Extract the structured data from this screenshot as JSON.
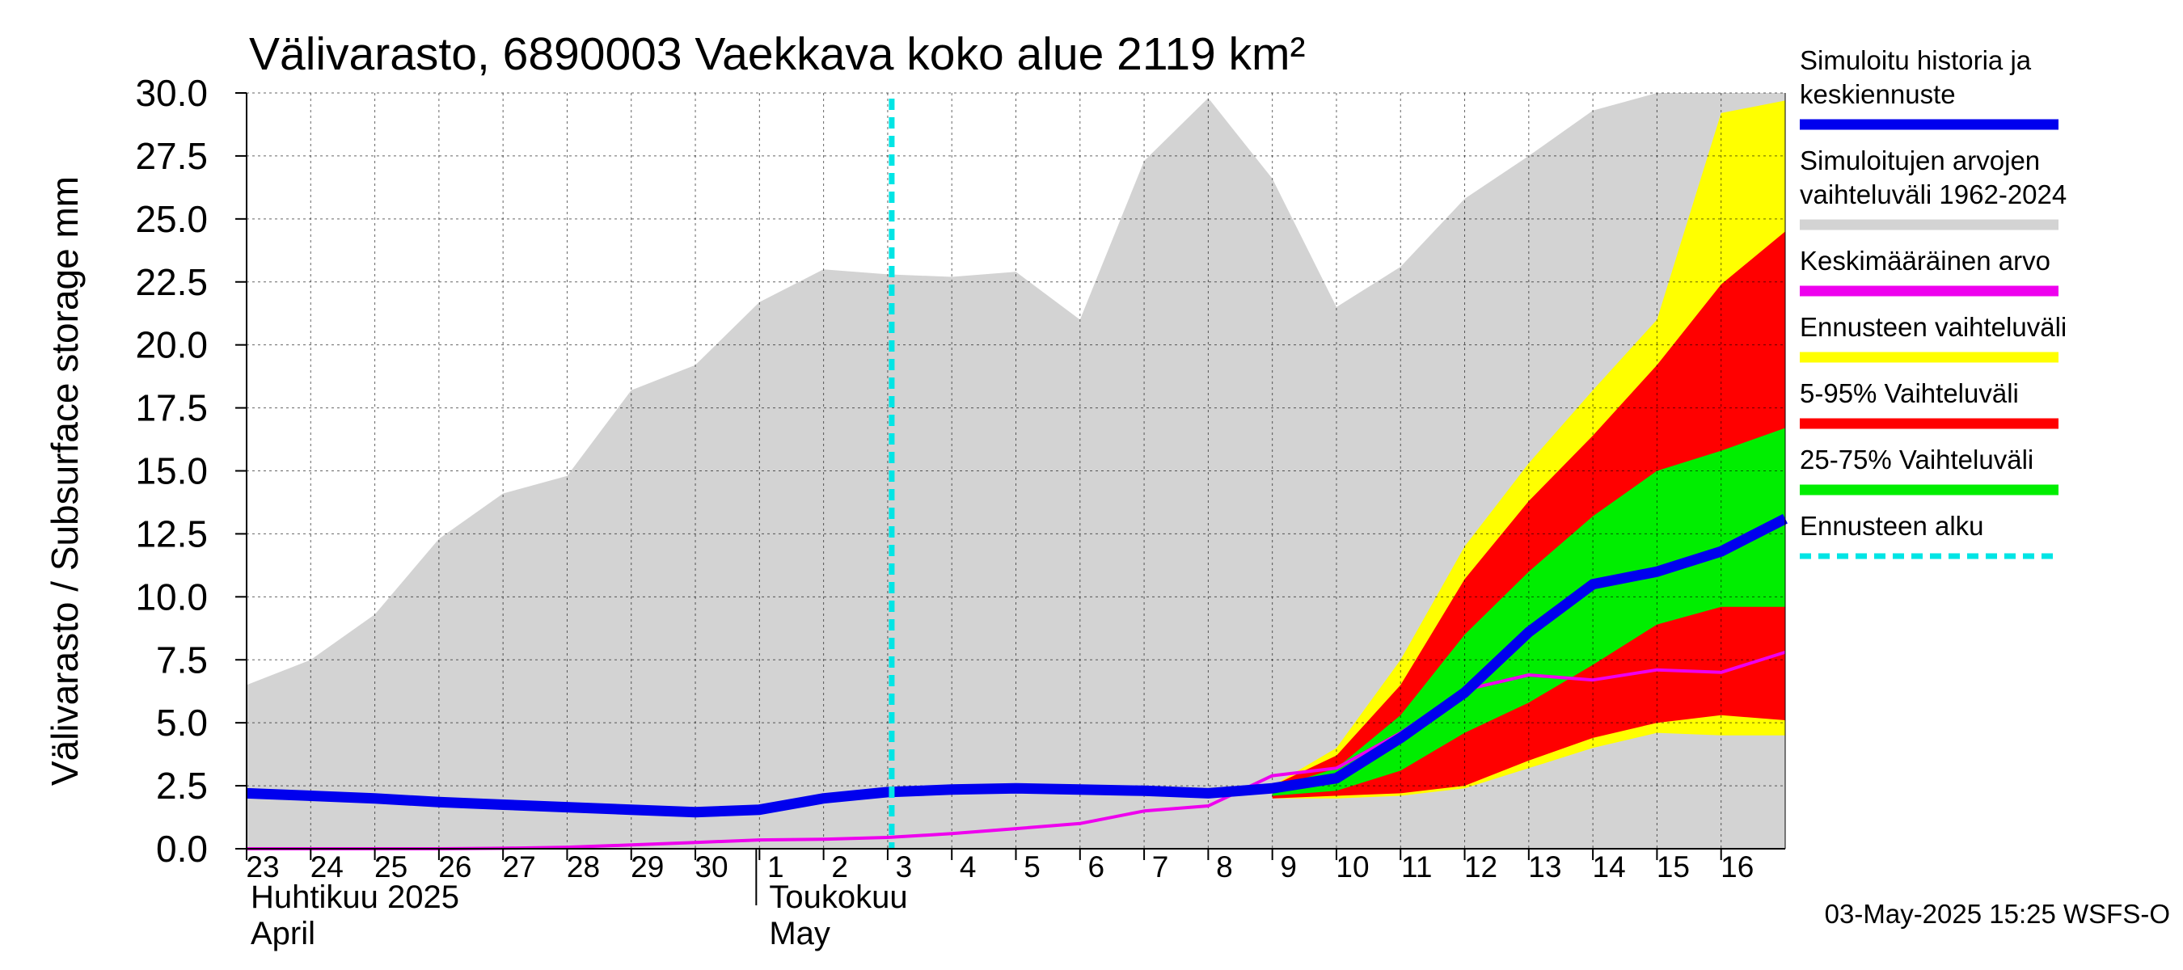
{
  "chart_data": {
    "type": "area",
    "title": "Välivarasto, 6890003 Vaekkava koko alue 2119 km²",
    "ylabel": "Välivarasto / Subsurface storage  mm",
    "ylim": [
      0,
      30
    ],
    "yticks": [
      "0.0",
      "2.5",
      "5.0",
      "7.5",
      "10.0",
      "12.5",
      "15.0",
      "17.5",
      "20.0",
      "22.5",
      "25.0",
      "27.5",
      "30.0"
    ],
    "x_start": "2025-04-23",
    "x_end": "2025-05-17",
    "xticks": [
      {
        "date": "2025-04-23",
        "label": "23"
      },
      {
        "date": "2025-04-24",
        "label": "24"
      },
      {
        "date": "2025-04-25",
        "label": "25"
      },
      {
        "date": "2025-04-26",
        "label": "26"
      },
      {
        "date": "2025-04-27",
        "label": "27"
      },
      {
        "date": "2025-04-28",
        "label": "28"
      },
      {
        "date": "2025-04-29",
        "label": "29"
      },
      {
        "date": "2025-04-30",
        "label": "30"
      },
      {
        "date": "2025-05-01",
        "label": "1"
      },
      {
        "date": "2025-05-02",
        "label": "2"
      },
      {
        "date": "2025-05-03",
        "label": "3"
      },
      {
        "date": "2025-05-04",
        "label": "4"
      },
      {
        "date": "2025-05-05",
        "label": "5"
      },
      {
        "date": "2025-05-06",
        "label": "6"
      },
      {
        "date": "2025-05-07",
        "label": "7"
      },
      {
        "date": "2025-05-08",
        "label": "8"
      },
      {
        "date": "2025-05-09",
        "label": "9"
      },
      {
        "date": "2025-05-10",
        "label": "10"
      },
      {
        "date": "2025-05-11",
        "label": "11"
      },
      {
        "date": "2025-05-12",
        "label": "12"
      },
      {
        "date": "2025-05-13",
        "label": "13"
      },
      {
        "date": "2025-05-14",
        "label": "14"
      },
      {
        "date": "2025-05-15",
        "label": "15"
      },
      {
        "date": "2025-05-16",
        "label": "16"
      }
    ],
    "month_labels": [
      {
        "date": "2025-04-23",
        "fi": "Huhtikuu  2025",
        "en": "April"
      },
      {
        "date": "2025-05-01",
        "fi": "Toukokuu",
        "en": "May"
      }
    ],
    "month_separator": "2025-05-01",
    "forecast_start": "2025-05-03",
    "grid": true,
    "legend_position": "right",
    "series": [
      {
        "name": "Simuloitujen arvojen vaihteluväli 1962-2024",
        "type": "band",
        "color": "#d3d3d3",
        "x": [
          "2025-04-23",
          "2025-04-24",
          "2025-04-25",
          "2025-04-26",
          "2025-04-27",
          "2025-04-28",
          "2025-04-29",
          "2025-04-30",
          "2025-05-01",
          "2025-05-02",
          "2025-05-03",
          "2025-05-04",
          "2025-05-05",
          "2025-05-06",
          "2025-05-07",
          "2025-05-08",
          "2025-05-09",
          "2025-05-10",
          "2025-05-11",
          "2025-05-12",
          "2025-05-13",
          "2025-05-14",
          "2025-05-15",
          "2025-05-16",
          "2025-05-17"
        ],
        "low": [
          0,
          0,
          0,
          0,
          0,
          0,
          0,
          0,
          0,
          0,
          0,
          0,
          0,
          0,
          0,
          0,
          0,
          0,
          0,
          0,
          0,
          0,
          0,
          0,
          0
        ],
        "high": [
          6.5,
          7.5,
          9.3,
          12.3,
          14.1,
          14.8,
          18.2,
          19.2,
          21.7,
          23.0,
          22.8,
          22.7,
          22.9,
          21.0,
          27.3,
          29.8,
          26.6,
          21.5,
          23.1,
          25.8,
          27.5,
          29.3,
          30.0,
          30.0,
          30.0
        ]
      },
      {
        "name": "Ennusteen vaihteluväli",
        "type": "band",
        "color": "#ffff00",
        "x": [
          "2025-05-09",
          "2025-05-10",
          "2025-05-11",
          "2025-05-12",
          "2025-05-13",
          "2025-05-14",
          "2025-05-15",
          "2025-05-16",
          "2025-05-17"
        ],
        "low": [
          2.0,
          2.0,
          2.1,
          2.4,
          3.2,
          4.0,
          4.6,
          4.5,
          4.5
        ],
        "high": [
          2.5,
          4.0,
          7.5,
          12.0,
          15.3,
          18.2,
          21.0,
          29.2,
          29.7
        ]
      },
      {
        "name": "5-95% Vaihteluväli",
        "type": "band",
        "color": "#ff0000",
        "x": [
          "2025-05-09",
          "2025-05-10",
          "2025-05-11",
          "2025-05-12",
          "2025-05-13",
          "2025-05-14",
          "2025-05-15",
          "2025-05-16",
          "2025-05-17"
        ],
        "low": [
          2.0,
          2.1,
          2.2,
          2.5,
          3.5,
          4.4,
          5.0,
          5.3,
          5.1
        ],
        "high": [
          2.5,
          3.7,
          6.5,
          10.7,
          13.8,
          16.4,
          19.2,
          22.4,
          24.5
        ]
      },
      {
        "name": "25-75% Vaihteluväli",
        "type": "band",
        "color": "#00ee00",
        "x": [
          "2025-05-09",
          "2025-05-10",
          "2025-05-11",
          "2025-05-12",
          "2025-05-13",
          "2025-05-14",
          "2025-05-15",
          "2025-05-16",
          "2025-05-17"
        ],
        "low": [
          2.1,
          2.3,
          3.1,
          4.6,
          5.8,
          7.3,
          8.9,
          9.6,
          9.6
        ],
        "high": [
          2.4,
          3.2,
          5.3,
          8.5,
          11.0,
          13.2,
          15.0,
          15.8,
          16.7
        ]
      },
      {
        "name": "Keskimääräinen arvo",
        "type": "line",
        "color": "#ee00ee",
        "x": [
          "2025-04-23",
          "2025-04-24",
          "2025-04-25",
          "2025-04-26",
          "2025-04-27",
          "2025-04-28",
          "2025-04-29",
          "2025-04-30",
          "2025-05-01",
          "2025-05-02",
          "2025-05-03",
          "2025-05-04",
          "2025-05-05",
          "2025-05-06",
          "2025-05-07",
          "2025-05-08",
          "2025-05-09",
          "2025-05-10",
          "2025-05-11",
          "2025-05-12",
          "2025-05-13",
          "2025-05-14",
          "2025-05-15",
          "2025-05-16",
          "2025-05-17"
        ],
        "values": [
          0,
          0,
          0,
          0,
          0.02,
          0.06,
          0.15,
          0.25,
          0.35,
          0.38,
          0.45,
          0.6,
          0.8,
          1.0,
          1.5,
          1.7,
          2.9,
          3.2,
          4.6,
          6.3,
          6.9,
          6.7,
          7.1,
          7.0,
          7.8
        ]
      },
      {
        "name": "Simuloitu historia ja keskiennuste",
        "type": "line",
        "color": "#0000ee",
        "x": [
          "2025-04-23",
          "2025-04-24",
          "2025-04-25",
          "2025-04-26",
          "2025-04-27",
          "2025-04-28",
          "2025-04-29",
          "2025-04-30",
          "2025-05-01",
          "2025-05-02",
          "2025-05-03",
          "2025-05-04",
          "2025-05-05",
          "2025-05-06",
          "2025-05-07",
          "2025-05-08",
          "2025-05-09",
          "2025-05-10",
          "2025-05-11",
          "2025-05-12",
          "2025-05-13",
          "2025-05-14",
          "2025-05-15",
          "2025-05-16",
          "2025-05-17"
        ],
        "values": [
          2.2,
          2.1,
          2.0,
          1.85,
          1.75,
          1.65,
          1.55,
          1.45,
          1.55,
          2.0,
          2.25,
          2.35,
          2.4,
          2.35,
          2.3,
          2.2,
          2.4,
          2.8,
          4.4,
          6.2,
          8.6,
          10.5,
          11.0,
          11.8,
          13.1
        ]
      }
    ]
  },
  "legend": [
    {
      "label": "Simuloitu historia ja keskiennuste",
      "color": "#0000ee",
      "style": "solid",
      "lines": [
        "Simuloitu historia ja",
        "keskiennuste"
      ]
    },
    {
      "label": "Simuloitujen arvojen vaihteluväli 1962-2024",
      "color": "#d3d3d3",
      "style": "solid",
      "lines": [
        "Simuloitujen arvojen",
        "vaihteluväli 1962-2024"
      ]
    },
    {
      "label": "Keskimääräinen arvo",
      "color": "#ee00ee",
      "style": "solid",
      "lines": [
        "Keskimääräinen arvo"
      ]
    },
    {
      "label": "Ennusteen vaihteluväli",
      "color": "#ffff00",
      "style": "solid",
      "lines": [
        "Ennusteen vaihteluväli"
      ]
    },
    {
      "label": "5-95% Vaihteluväli",
      "color": "#ff0000",
      "style": "solid",
      "lines": [
        "5-95% Vaihteluväli"
      ]
    },
    {
      "label": "25-75% Vaihteluväli",
      "color": "#00ee00",
      "style": "solid",
      "lines": [
        "25-75% Vaihteluväli"
      ]
    },
    {
      "label": "Ennusteen alku",
      "color": "#00e5e5",
      "style": "dashed",
      "lines": [
        "Ennusteen alku"
      ]
    }
  ],
  "footer": "03-May-2025 15:25 WSFS-O"
}
